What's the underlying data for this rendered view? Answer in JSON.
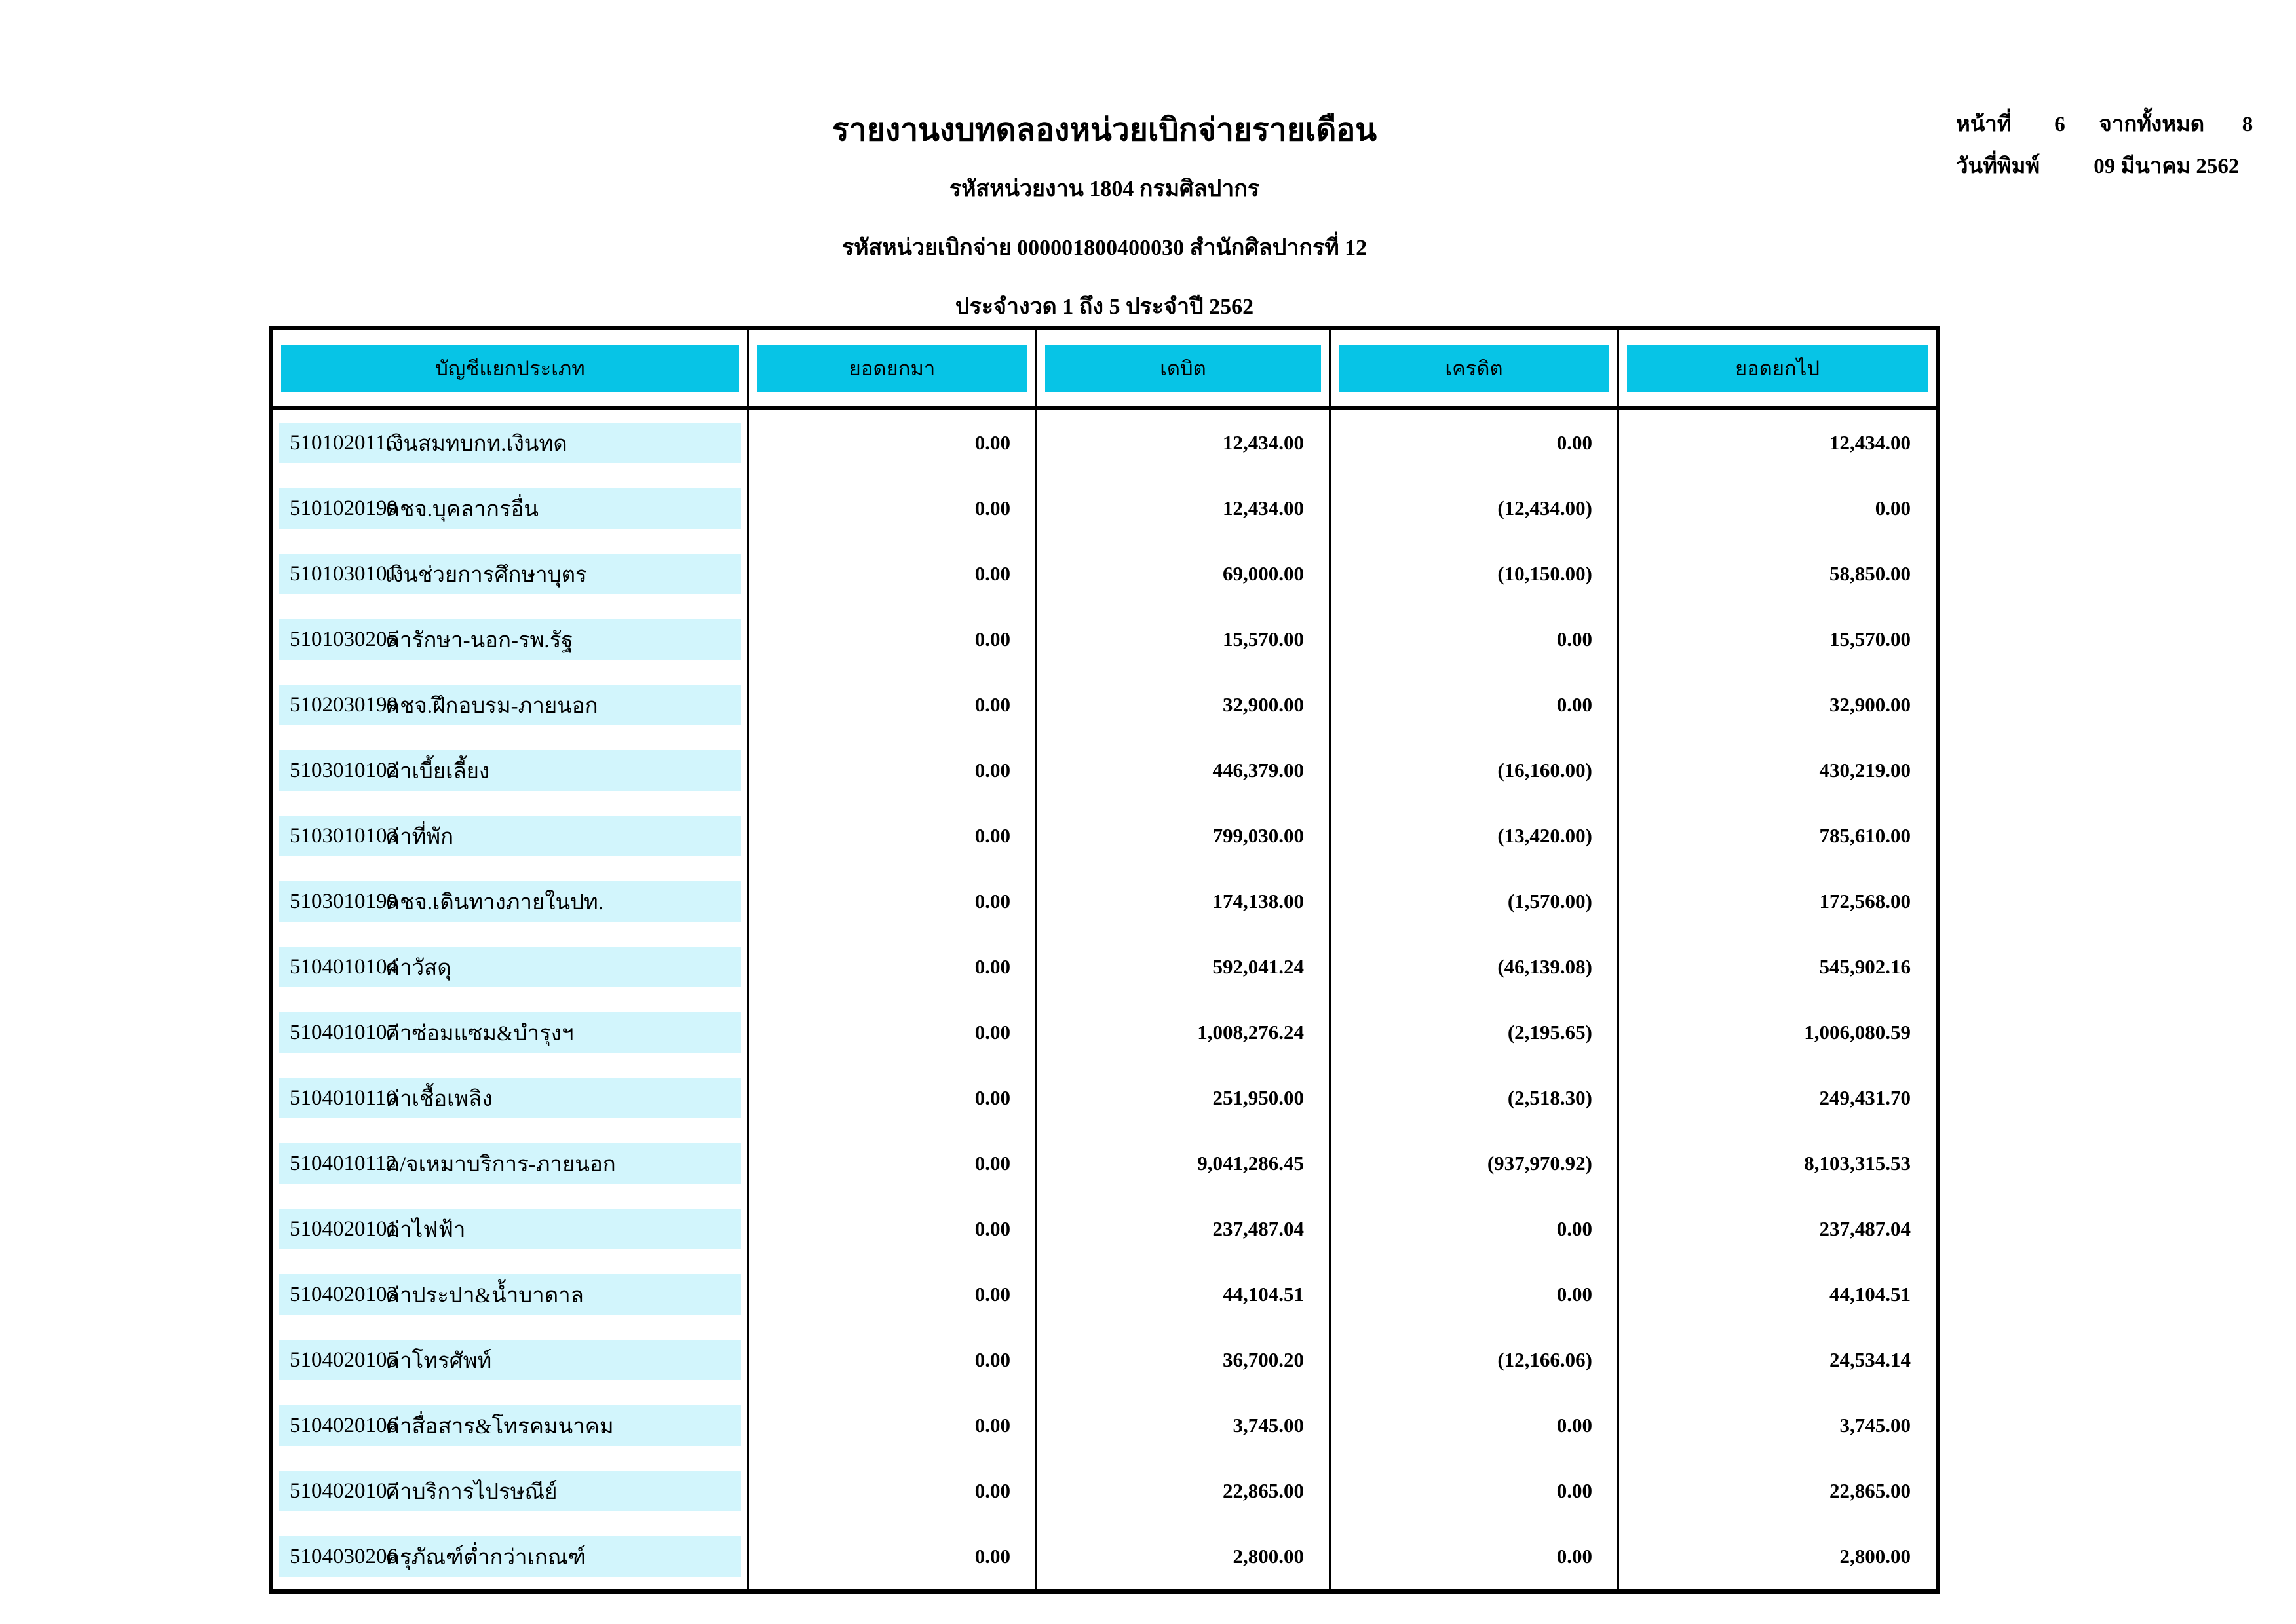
{
  "page_info": {
    "page_label": "หน้าที่",
    "page_number": "6",
    "total_label": "จากทั้งหมด",
    "total_pages": "8",
    "print_date_label": "วันที่พิมพ์",
    "print_date": "09 มีนาคม 2562"
  },
  "header": {
    "title": "รายงานงบทดลองหน่วยเบิกจ่ายรายเดือน",
    "agency_line": "รหัสหน่วยงาน 1804 กรมศิลปากร",
    "unit_line": "รหัสหน่วยเบิกจ่าย 000001800400030 สำนักศิลปากรที่ 12",
    "period_line": "ประจำงวด 1 ถึง 5 ประจำปี 2562"
  },
  "table": {
    "columns": [
      "บัญชีแยกประเภท",
      "ยอดยกมา",
      "เดบิต",
      "เครดิต",
      "ยอดยกไป"
    ],
    "rows": [
      {
        "code": "5101020116",
        "name": "เงินสมทบกท.เงินทด",
        "balance_bf": "0.00",
        "debit": "12,434.00",
        "credit": "0.00",
        "balance_cf": "12,434.00"
      },
      {
        "code": "5101020199",
        "name": "คชจ.บุคลากรอื่น",
        "balance_bf": "0.00",
        "debit": "12,434.00",
        "credit": "(12,434.00)",
        "balance_cf": "0.00"
      },
      {
        "code": "5101030101",
        "name": "เงินช่วยการศึกษาบุตร",
        "balance_bf": "0.00",
        "debit": "69,000.00",
        "credit": "(10,150.00)",
        "balance_cf": "58,850.00"
      },
      {
        "code": "5101030205",
        "name": "ค่ารักษา-นอก-รพ.รัฐ",
        "balance_bf": "0.00",
        "debit": "15,570.00",
        "credit": "0.00",
        "balance_cf": "15,570.00"
      },
      {
        "code": "5102030199",
        "name": "คชจ.ฝึกอบรม-ภายนอก",
        "balance_bf": "0.00",
        "debit": "32,900.00",
        "credit": "0.00",
        "balance_cf": "32,900.00"
      },
      {
        "code": "5103010102",
        "name": "ค่าเบี้ยเลี้ยง",
        "balance_bf": "0.00",
        "debit": "446,379.00",
        "credit": "(16,160.00)",
        "balance_cf": "430,219.00"
      },
      {
        "code": "5103010103",
        "name": "ค่าที่พัก",
        "balance_bf": "0.00",
        "debit": "799,030.00",
        "credit": "(13,420.00)",
        "balance_cf": "785,610.00"
      },
      {
        "code": "5103010199",
        "name": "คชจ.เดินทางภายในปท.",
        "balance_bf": "0.00",
        "debit": "174,138.00",
        "credit": "(1,570.00)",
        "balance_cf": "172,568.00"
      },
      {
        "code": "5104010104",
        "name": "ค่าวัสดุ",
        "balance_bf": "0.00",
        "debit": "592,041.24",
        "credit": "(46,139.08)",
        "balance_cf": "545,902.16"
      },
      {
        "code": "5104010107",
        "name": "ค่าซ่อมแซม&บำรุงฯ",
        "balance_bf": "0.00",
        "debit": "1,008,276.24",
        "credit": "(2,195.65)",
        "balance_cf": "1,006,080.59"
      },
      {
        "code": "5104010110",
        "name": "ค่าเชื้อเพลิง",
        "balance_bf": "0.00",
        "debit": "251,950.00",
        "credit": "(2,518.30)",
        "balance_cf": "249,431.70"
      },
      {
        "code": "5104010112",
        "name": "ค/จเหมาบริการ-ภายนอก",
        "balance_bf": "0.00",
        "debit": "9,041,286.45",
        "credit": "(937,970.92)",
        "balance_cf": "8,103,315.53"
      },
      {
        "code": "5104020101",
        "name": "ค่าไฟฟ้า",
        "balance_bf": "0.00",
        "debit": "237,487.04",
        "credit": "0.00",
        "balance_cf": "237,487.04"
      },
      {
        "code": "5104020103",
        "name": "ค่าประปา&น้ำบาดาล",
        "balance_bf": "0.00",
        "debit": "44,104.51",
        "credit": "0.00",
        "balance_cf": "44,104.51"
      },
      {
        "code": "5104020105",
        "name": "ค่าโทรศัพท์",
        "balance_bf": "0.00",
        "debit": "36,700.20",
        "credit": "(12,166.06)",
        "balance_cf": "24,534.14"
      },
      {
        "code": "5104020106",
        "name": "ค่าสื่อสาร&โทรคมนาคม",
        "balance_bf": "0.00",
        "debit": "3,745.00",
        "credit": "0.00",
        "balance_cf": "3,745.00"
      },
      {
        "code": "5104020107",
        "name": "ค่าบริการไปรษณีย์",
        "balance_bf": "0.00",
        "debit": "22,865.00",
        "credit": "0.00",
        "balance_cf": "22,865.00"
      },
      {
        "code": "5104030206",
        "name": "ครุภัณฑ์ต่ำกว่าเกณฑ์",
        "balance_bf": "0.00",
        "debit": "2,800.00",
        "credit": "0.00",
        "balance_cf": "2,800.00"
      }
    ]
  },
  "colors": {
    "header_bg": "#07c4e6",
    "row_stripe": "#d2f5fc"
  }
}
